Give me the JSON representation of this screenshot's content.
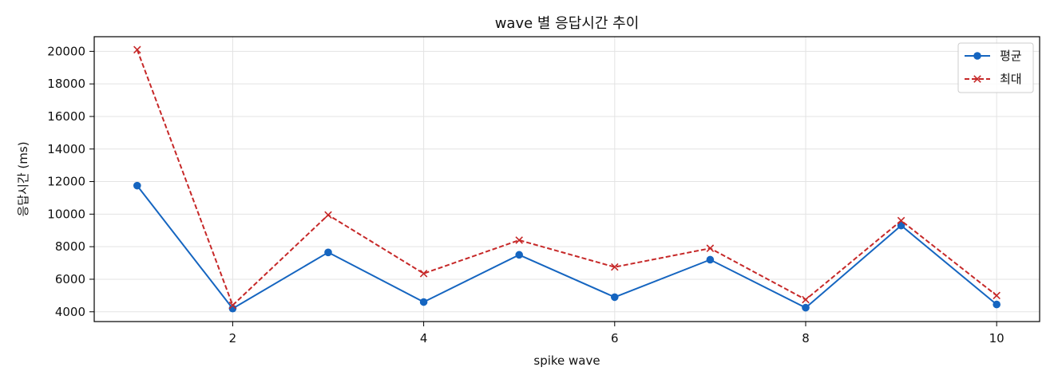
{
  "chart_data": {
    "type": "line",
    "title": "wave 별 응답시간 추이",
    "xlabel": "spike wave",
    "ylabel": "응답시간 (ms)",
    "x": [
      1,
      2,
      3,
      4,
      5,
      6,
      7,
      8,
      9,
      10
    ],
    "xlim": [
      0.55,
      10.45
    ],
    "ylim": [
      3400,
      20900
    ],
    "xticks": [
      2,
      4,
      6,
      8,
      10
    ],
    "yticks": [
      4000,
      6000,
      8000,
      10000,
      12000,
      14000,
      16000,
      18000,
      20000
    ],
    "grid": true,
    "legend_position": "top-right",
    "series": [
      {
        "name": "평균",
        "values": [
          11750,
          4200,
          7650,
          4600,
          7500,
          4900,
          7200,
          4250,
          9300,
          4450
        ],
        "color": "#1565c0",
        "line_style": "solid",
        "marker": "circle"
      },
      {
        "name": "최대",
        "values": [
          20100,
          4400,
          9950,
          6350,
          8400,
          6750,
          7900,
          4750,
          9600,
          5000
        ],
        "color": "#c62828",
        "line_style": "dashed",
        "marker": "x"
      }
    ]
  }
}
